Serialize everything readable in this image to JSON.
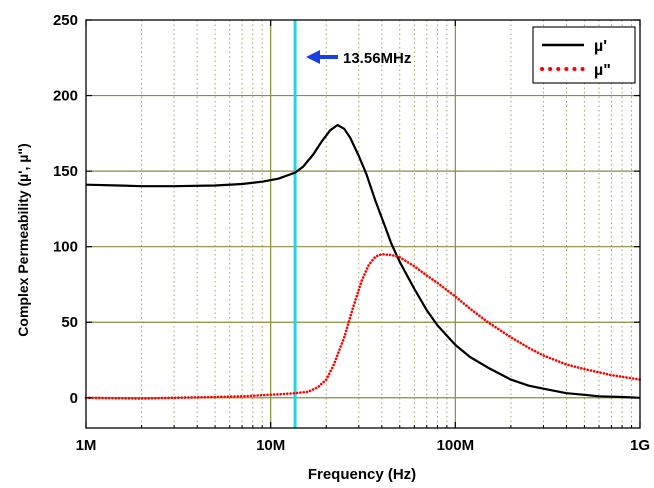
{
  "chart_data": {
    "type": "line",
    "title": "",
    "xlabel": "Frequency (Hz)",
    "ylabel": "Complex Permeability (µ', µ\")",
    "x_scale": "log",
    "xlim": [
      1000000,
      1000000000
    ],
    "ylim": [
      -20,
      250
    ],
    "x_ticks": [
      {
        "value": 1000000,
        "label": "1M"
      },
      {
        "value": 10000000,
        "label": "10M"
      },
      {
        "value": 100000000,
        "label": "100M"
      },
      {
        "value": 1000000000,
        "label": "1G"
      }
    ],
    "y_ticks": [
      {
        "value": 0,
        "label": "0"
      },
      {
        "value": 50,
        "label": "50"
      },
      {
        "value": 100,
        "label": "100"
      },
      {
        "value": 150,
        "label": "150"
      },
      {
        "value": 200,
        "label": "200"
      },
      {
        "value": 250,
        "label": "250"
      }
    ],
    "grid": true,
    "grid_color": "#8c8c3c",
    "legend_position": "top-right",
    "series": [
      {
        "name": "µ'",
        "color": "#000000",
        "style": "solid",
        "points": [
          [
            1000000,
            141
          ],
          [
            1500000,
            140.5
          ],
          [
            2000000,
            140
          ],
          [
            3000000,
            140
          ],
          [
            5000000,
            140.5
          ],
          [
            7000000,
            141.5
          ],
          [
            9000000,
            143
          ],
          [
            11000000,
            145
          ],
          [
            13560000,
            149
          ],
          [
            15000000,
            153
          ],
          [
            17000000,
            161
          ],
          [
            19000000,
            170
          ],
          [
            21000000,
            177
          ],
          [
            23000000,
            180.5
          ],
          [
            25000000,
            178
          ],
          [
            27000000,
            172
          ],
          [
            30000000,
            160
          ],
          [
            33000000,
            148
          ],
          [
            37000000,
            130
          ],
          [
            42000000,
            112
          ],
          [
            45000000,
            102
          ],
          [
            50000000,
            90
          ],
          [
            60000000,
            72
          ],
          [
            70000000,
            58
          ],
          [
            80000000,
            48
          ],
          [
            100000000,
            35
          ],
          [
            120000000,
            27
          ],
          [
            150000000,
            20
          ],
          [
            200000000,
            12
          ],
          [
            250000000,
            8
          ],
          [
            300000000,
            6
          ],
          [
            400000000,
            3
          ],
          [
            500000000,
            2
          ],
          [
            600000000,
            1
          ],
          [
            800000000,
            0.5
          ],
          [
            1000000000,
            0
          ]
        ]
      },
      {
        "name": "µ\"",
        "color": "#ff0000",
        "style": "dotted",
        "points": [
          [
            1000000,
            0
          ],
          [
            2000000,
            -0.5
          ],
          [
            3000000,
            0
          ],
          [
            5000000,
            0.5
          ],
          [
            7000000,
            1
          ],
          [
            10000000,
            2
          ],
          [
            13560000,
            3
          ],
          [
            16000000,
            4
          ],
          [
            18000000,
            7
          ],
          [
            20000000,
            12
          ],
          [
            22000000,
            22
          ],
          [
            25000000,
            40
          ],
          [
            28000000,
            60
          ],
          [
            31000000,
            77
          ],
          [
            34000000,
            88
          ],
          [
            37000000,
            93.5
          ],
          [
            40000000,
            95
          ],
          [
            45000000,
            94.5
          ],
          [
            50000000,
            93
          ],
          [
            60000000,
            87
          ],
          [
            70000000,
            81
          ],
          [
            80000000,
            76
          ],
          [
            100000000,
            67
          ],
          [
            120000000,
            59
          ],
          [
            150000000,
            50
          ],
          [
            200000000,
            40
          ],
          [
            250000000,
            33
          ],
          [
            300000000,
            28
          ],
          [
            400000000,
            22
          ],
          [
            500000000,
            19
          ],
          [
            700000000,
            15
          ],
          [
            1000000000,
            12
          ]
        ]
      }
    ],
    "marker": {
      "value": 13560000,
      "label": "13.56MHz",
      "color": "#21d4ea",
      "arrow_color": "#1a3ee6"
    }
  }
}
